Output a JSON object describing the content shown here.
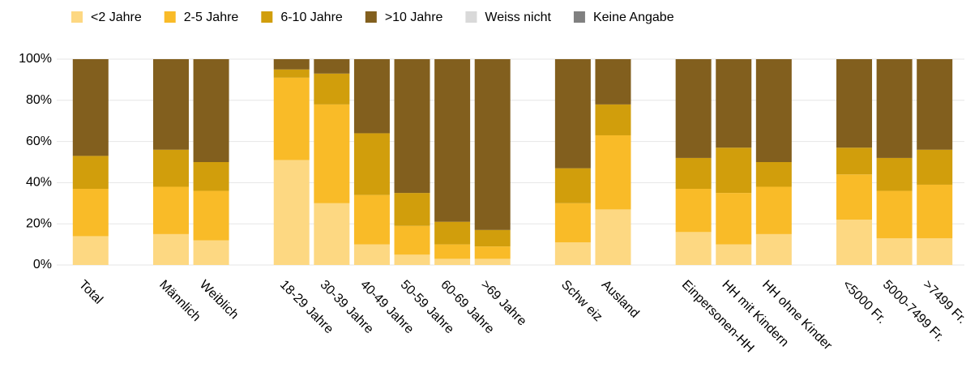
{
  "chart_data": {
    "type": "stacked_bar",
    "categories": [
      "Total",
      null,
      "Männlich",
      "Weiblich",
      null,
      "18-29 Jahre",
      "30-39 Jahre",
      "40-49 Jahre",
      "50-59 Jahre",
      "60-69 Jahre",
      ">69 Jahre",
      null,
      "Schw eiz",
      "Ausland",
      null,
      "Einpersonen-HH",
      "HH mit Kindern",
      "HH ohne Kinder",
      null,
      "<5000 Fr.",
      "5000-7499 Fr.",
      ">7499 Fr."
    ],
    "series": [
      {
        "name": "<2 Jahre",
        "color": "#fdd882",
        "values": [
          14,
          null,
          15,
          12,
          null,
          51,
          30,
          10,
          5,
          3,
          3,
          null,
          11,
          27,
          null,
          16,
          10,
          15,
          null,
          22,
          13,
          13
        ]
      },
      {
        "name": "2-5 Jahre",
        "color": "#f9bb28",
        "values": [
          23,
          null,
          23,
          24,
          null,
          40,
          48,
          24,
          14,
          7,
          6,
          null,
          19,
          36,
          null,
          21,
          25,
          23,
          null,
          22,
          23,
          26
        ]
      },
      {
        "name": "6-10 Jahre",
        "color": "#d19e0c",
        "values": [
          16,
          null,
          18,
          14,
          null,
          4,
          15,
          30,
          16,
          11,
          8,
          null,
          17,
          15,
          null,
          15,
          22,
          12,
          null,
          13,
          16,
          17
        ]
      },
      {
        "name": ">10 Jahre",
        "color": "#825f1e",
        "values": [
          47,
          null,
          44,
          50,
          null,
          5,
          7,
          36,
          65,
          79,
          83,
          null,
          53,
          22,
          null,
          48,
          43,
          50,
          null,
          43,
          48,
          44
        ]
      },
      {
        "name": "Weiss nicht",
        "color": "#d9d9d9",
        "values": [
          0,
          null,
          0,
          0,
          null,
          0,
          0,
          0,
          0,
          0,
          0,
          null,
          0,
          0,
          null,
          0,
          0,
          0,
          null,
          0,
          0,
          0
        ]
      },
      {
        "name": "Keine Angabe",
        "color": "#808080",
        "values": [
          0,
          null,
          0,
          0,
          null,
          0,
          0,
          0,
          0,
          0,
          0,
          null,
          0,
          0,
          null,
          0,
          0,
          0,
          null,
          0,
          0,
          0
        ]
      }
    ],
    "ylim": [
      0,
      100
    ],
    "yticks": [
      {
        "value": 0,
        "label": "0%"
      },
      {
        "value": 20,
        "label": "20%"
      },
      {
        "value": 40,
        "label": "40%"
      },
      {
        "value": 60,
        "label": "60%"
      },
      {
        "value": 80,
        "label": "80%"
      },
      {
        "value": 100,
        "label": "100%"
      }
    ],
    "grid": true
  }
}
